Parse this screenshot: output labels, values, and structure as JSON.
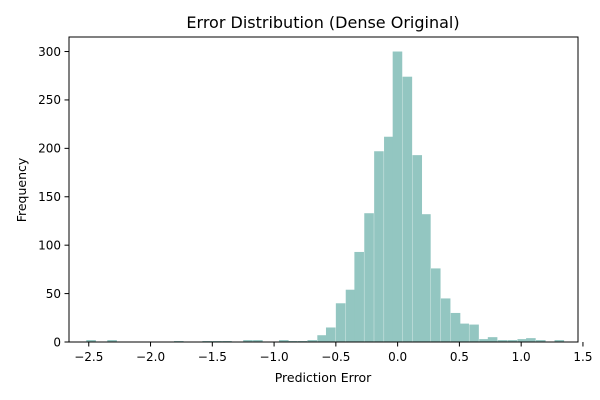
{
  "chart_data": {
    "type": "histogram",
    "title": "Error Distribution (Dense Original)",
    "xlabel": "Prediction Error",
    "ylabel": "Frequency",
    "xlim": [
      -2.66,
      1.46
    ],
    "ylim": [
      0,
      315
    ],
    "xticks": [
      -2.5,
      -2.0,
      -1.5,
      -1.0,
      -0.5,
      0.0,
      0.5,
      1.0,
      1.5
    ],
    "xtick_labels": [
      "−2.5",
      "−2.0",
      "−1.5",
      "−1.0",
      "−0.5",
      "0.0",
      "0.5",
      "1.0",
      "1.5"
    ],
    "yticks": [
      0,
      50,
      100,
      150,
      200,
      250,
      300
    ],
    "ytick_labels": [
      "0",
      "50",
      "100",
      "150",
      "200",
      "250",
      "300"
    ],
    "bin_width": 0.0775,
    "bin_left_edges": [
      -2.52,
      -2.35,
      -1.81,
      -1.58,
      -1.5,
      -1.42,
      -1.25,
      -1.17,
      -0.96,
      -0.89,
      -0.81,
      -0.73,
      -0.65,
      -0.58,
      -0.5,
      -0.42,
      -0.35,
      -0.27,
      -0.19,
      -0.11,
      -0.04,
      0.04,
      0.12,
      0.19,
      0.27,
      0.35,
      0.43,
      0.5,
      0.58,
      0.66,
      0.73,
      0.81,
      0.89,
      0.97,
      1.04,
      1.12,
      1.27
    ],
    "counts": [
      2,
      2,
      1,
      1,
      1,
      1,
      2,
      2,
      2,
      1,
      1,
      2,
      7,
      15,
      40,
      54,
      93,
      133,
      197,
      212,
      300,
      274,
      193,
      132,
      76,
      45,
      30,
      19,
      18,
      3,
      5,
      2,
      2,
      3,
      4,
      2,
      2
    ],
    "bar_color": "#93c6c1"
  }
}
